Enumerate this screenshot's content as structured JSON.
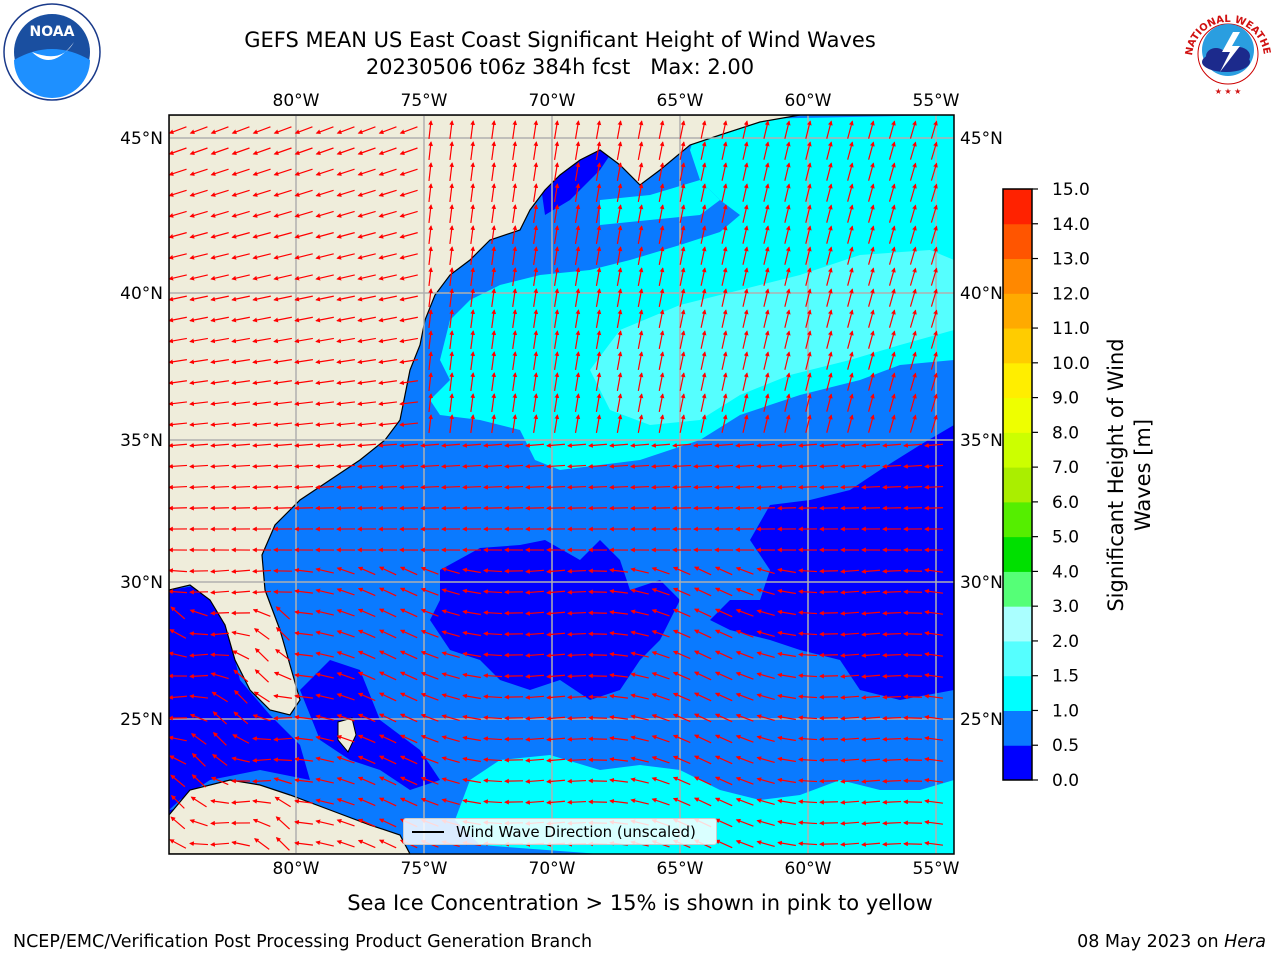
{
  "header": {
    "title_line1": "GEFS MEAN US East Coast Significant Height of Wind Waves",
    "title_line2": "20230506 t06z 384h fcst   Max: 2.00"
  },
  "logos": {
    "left": "NOAA",
    "right": "NATIONAL WEATHER SERVICE"
  },
  "map": {
    "lon_labels": [
      "80°W",
      "75°W",
      "70°W",
      "65°W",
      "60°W",
      "55°W"
    ],
    "lat_labels": [
      "45°N",
      "40°N",
      "35°N",
      "30°N",
      "25°N"
    ],
    "colors": {
      "land": "#efeddb",
      "band_0_05": "#0000ff",
      "band_05_1": "#0a7aff",
      "band_1_15": "#00ffff",
      "band_15_2": "#55ffff",
      "band_2_3": "#aaffff",
      "arrow": "#ff0000",
      "grid": "#b0b0b0"
    },
    "legend": "Wind Wave Direction (unscaled)"
  },
  "colorbar": {
    "title_line1": "Significant Height of Wind",
    "title_line2": "Waves [m]",
    "ticks": [
      "0.0",
      "0.5",
      "1.0",
      "1.5",
      "2.0",
      "3.0",
      "4.0",
      "5.0",
      "6.0",
      "7.0",
      "8.0",
      "9.0",
      "10.0",
      "11.0",
      "12.0",
      "13.0",
      "14.0",
      "15.0"
    ],
    "colors": [
      "#0000ff",
      "#0a7aff",
      "#00ffff",
      "#55ffff",
      "#aaffff",
      "#55ff77",
      "#00e000",
      "#55ee00",
      "#aaee00",
      "#ccff00",
      "#eeff00",
      "#ffee00",
      "#ffcc00",
      "#ffaa00",
      "#ff8800",
      "#ff5500",
      "#ff2200"
    ]
  },
  "footnote": "Sea Ice Concentration > 15% is shown in pink to yellow",
  "credit_left": "NCEP/EMC/Verification Post Processing Product Generation Branch",
  "credit_right_date": "08 May 2023 on ",
  "credit_right_machine": "Hera"
}
